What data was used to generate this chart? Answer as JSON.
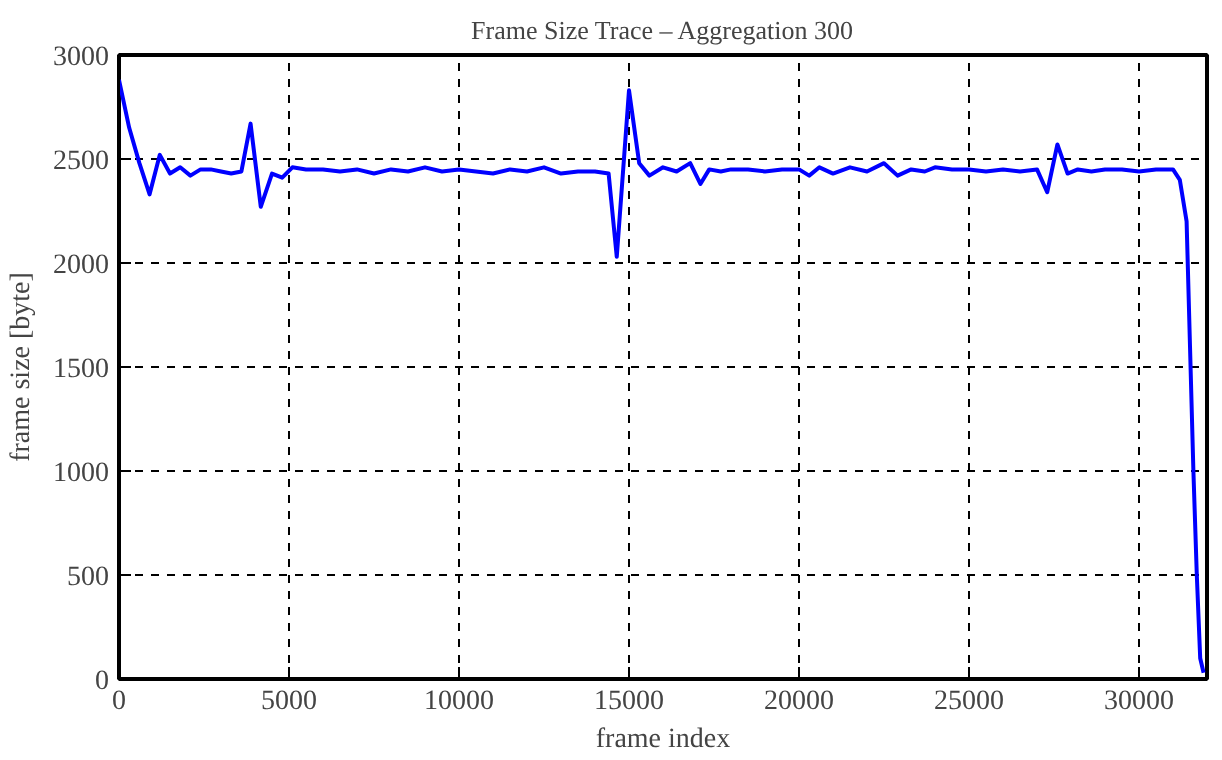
{
  "chart_data": {
    "type": "line",
    "title": "Frame Size Trace – Aggregation 300",
    "xlabel": "frame index",
    "ylabel": "frame size [byte]",
    "xlim": [
      0,
      32000
    ],
    "ylim": [
      0,
      3000
    ],
    "xticks": [
      0,
      5000,
      10000,
      15000,
      20000,
      25000,
      30000
    ],
    "yticks": [
      0,
      500,
      1000,
      1500,
      2000,
      2500,
      3000
    ],
    "grid": true,
    "marker": "none",
    "line_style": "solid",
    "series": [
      {
        "color": "#0000ff",
        "x": [
          0,
          300,
          600,
          900,
          1200,
          1500,
          1800,
          2100,
          2400,
          2700,
          3000,
          3300,
          3600,
          3870,
          4170,
          4500,
          4800,
          5100,
          5500,
          6000,
          6500,
          7000,
          7500,
          8000,
          8500,
          9000,
          9500,
          10000,
          10500,
          11000,
          11500,
          12000,
          12500,
          13000,
          13500,
          14000,
          14400,
          14640,
          15000,
          15300,
          15600,
          16000,
          16400,
          16800,
          17100,
          17360,
          17700,
          18000,
          18500,
          19000,
          19500,
          20000,
          20300,
          20600,
          21000,
          21500,
          22000,
          22500,
          22900,
          23300,
          23700,
          24000,
          24500,
          25000,
          25500,
          26000,
          26500,
          27000,
          27300,
          27600,
          27900,
          28200,
          28600,
          29000,
          29500,
          30000,
          30500,
          31000,
          31200,
          31400,
          31500,
          31600,
          31700,
          31800,
          31900
        ],
        "values": [
          2880,
          2650,
          2480,
          2330,
          2520,
          2430,
          2460,
          2420,
          2450,
          2450,
          2440,
          2430,
          2440,
          2670,
          2270,
          2430,
          2410,
          2460,
          2450,
          2450,
          2440,
          2450,
          2430,
          2450,
          2440,
          2460,
          2440,
          2450,
          2440,
          2430,
          2450,
          2440,
          2460,
          2430,
          2440,
          2440,
          2430,
          2030,
          2830,
          2480,
          2420,
          2460,
          2440,
          2480,
          2380,
          2450,
          2440,
          2450,
          2450,
          2440,
          2450,
          2450,
          2420,
          2460,
          2430,
          2460,
          2440,
          2480,
          2420,
          2450,
          2440,
          2460,
          2450,
          2450,
          2440,
          2450,
          2440,
          2450,
          2340,
          2570,
          2430,
          2450,
          2440,
          2450,
          2450,
          2440,
          2450,
          2450,
          2400,
          2200,
          1600,
          1000,
          500,
          100,
          30
        ]
      }
    ]
  }
}
